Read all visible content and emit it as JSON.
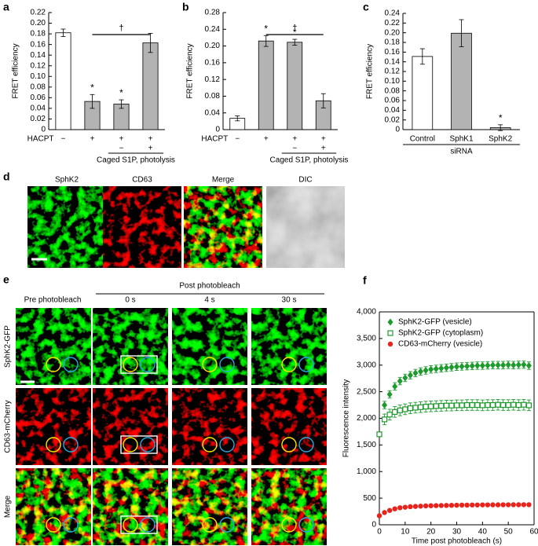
{
  "chart_data": [
    {
      "type": "bar",
      "panel": "a",
      "y_label": "FRET efficiency",
      "row_label": "HACPT",
      "categories": [
        "−",
        "+",
        "+",
        "+"
      ],
      "row2": [
        null,
        null,
        "−",
        "+"
      ],
      "group_label": "Caged S1P, photolysis",
      "values": [
        0.182,
        0.053,
        0.048,
        0.163
      ],
      "errors": [
        0.007,
        0.013,
        0.008,
        0.018
      ],
      "colors": [
        "#ffffff",
        "#b3b3b3",
        "#b3b3b3",
        "#b3b3b3"
      ],
      "annotations": [
        null,
        "*",
        "*",
        null
      ],
      "bracket_label": "†",
      "ylim": [
        0,
        0.22
      ],
      "yticks": [
        0,
        0.02,
        0.04,
        0.06,
        0.08,
        {
          "value": 0.1,
          "label": "0.10"
        },
        0.12,
        0.14,
        0.16,
        0.18,
        {
          "value": 0.2,
          "label": "0.20"
        },
        0.22
      ]
    },
    {
      "type": "bar",
      "panel": "b",
      "y_label": "FRET efficiency",
      "row_label": "HACPT",
      "categories": [
        "−",
        "+",
        "+",
        "+"
      ],
      "row2": [
        null,
        null,
        "−",
        "+"
      ],
      "group_label": "Caged S1P, photolysis",
      "values": [
        0.027,
        0.212,
        0.209,
        0.069
      ],
      "errors": [
        0.006,
        0.013,
        0.007,
        0.017
      ],
      "colors": [
        "#ffffff",
        "#b3b3b3",
        "#b3b3b3",
        "#b3b3b3"
      ],
      "annotations": [
        null,
        "*",
        "*",
        null
      ],
      "bracket_label": "†",
      "ylim": [
        0,
        0.28
      ],
      "yticks": [
        0,
        0.04,
        0.08,
        0.12,
        0.16,
        {
          "value": 0.2,
          "label": "0.20"
        },
        0.24,
        0.28
      ]
    },
    {
      "type": "bar",
      "panel": "c",
      "y_label": "FRET efficiency",
      "categories": [
        "Control",
        "SphK1",
        "SphK2"
      ],
      "group_label": "siRNA",
      "values": [
        0.151,
        0.199,
        0.004
      ],
      "errors": [
        0.016,
        0.028,
        0.006
      ],
      "colors": [
        "#ffffff",
        "#b3b3b3",
        "#b3b3b3"
      ],
      "annotations": [
        null,
        null,
        "*"
      ],
      "ylim": [
        0,
        0.24
      ],
      "yticks": [
        0,
        0.02,
        0.04,
        0.06,
        0.08,
        {
          "value": 0.1,
          "label": "0.10"
        },
        0.12,
        0.14,
        0.16,
        0.18,
        {
          "value": 0.2,
          "label": "0.20"
        },
        0.22,
        0.24
      ]
    },
    {
      "type": "scatter",
      "panel": "f",
      "x_label": "Time post photobleach (s)",
      "y_label": "Fluorescence intensity",
      "legend": "upper left",
      "x": [
        0,
        2,
        4,
        6,
        8,
        10,
        12,
        14,
        16,
        18,
        20,
        22,
        24,
        26,
        28,
        30,
        32,
        34,
        36,
        38,
        40,
        42,
        44,
        46,
        48,
        50,
        52,
        54,
        56,
        58
      ],
      "series": [
        {
          "name": "SphK2-GFP (vesicle)",
          "color": "#1e9a2e",
          "marker": "diamond",
          "values": [
            null,
            2250,
            2450,
            2600,
            2700,
            2760,
            2810,
            2850,
            2880,
            2900,
            2920,
            2930,
            2940,
            2950,
            2960,
            2970,
            2975,
            2980,
            2985,
            2990,
            2990,
            2995,
            3000,
            3000,
            3000,
            3005,
            3000,
            3005,
            3010,
            2990
          ],
          "errors": [
            null,
            70,
            70,
            70,
            70,
            70,
            70,
            70,
            70,
            70,
            70,
            70,
            70,
            70,
            70,
            70,
            70,
            70,
            70,
            70,
            70,
            70,
            70,
            70,
            70,
            70,
            70,
            70,
            70,
            70
          ]
        },
        {
          "name": "SphK2-GFP (cytoplasm)",
          "color": "#1e9a2e",
          "marker": "square-open",
          "values": [
            1700,
            1980,
            2070,
            2120,
            2150,
            2170,
            2190,
            2200,
            2210,
            2220,
            2225,
            2230,
            2235,
            2240,
            2240,
            2245,
            2245,
            2250,
            2250,
            2250,
            2245,
            2250,
            2250,
            2255,
            2250,
            2250,
            2255,
            2250,
            2255,
            2245
          ],
          "errors": [
            40,
            100,
            100,
            100,
            100,
            100,
            100,
            100,
            100,
            100,
            100,
            100,
            100,
            100,
            100,
            100,
            100,
            100,
            100,
            100,
            100,
            100,
            100,
            100,
            100,
            100,
            100,
            100,
            100,
            100
          ]
        },
        {
          "name": "CD63-mCherry (vesicle)",
          "color": "#e8231c",
          "marker": "circle",
          "values": [
            170,
            230,
            270,
            300,
            320,
            330,
            340,
            345,
            350,
            355,
            358,
            360,
            362,
            364,
            366,
            368,
            370,
            370,
            372,
            372,
            374,
            374,
            375,
            375,
            376,
            376,
            377,
            377,
            378,
            378
          ]
        }
      ],
      "xlim": [
        0,
        60
      ],
      "xticks": [
        0,
        10,
        20,
        30,
        40,
        50,
        60
      ],
      "ylim": [
        0,
        4000
      ],
      "yticks": [
        0,
        500,
        {
          "value": 1000,
          "label": "1,000"
        },
        {
          "value": 1500,
          "label": "1,500"
        },
        {
          "value": 2000,
          "label": "2,000"
        },
        {
          "value": 2500,
          "label": "2,500"
        },
        {
          "value": 3000,
          "label": "3,000"
        },
        {
          "value": 3500,
          "label": "3,500"
        },
        {
          "value": 4000,
          "label": "4,000"
        }
      ]
    }
  ],
  "panel_d": {
    "letter": "d",
    "labels": [
      "SphK2",
      "CD63",
      "Merge",
      "DIC"
    ]
  },
  "panel_e": {
    "letter": "e",
    "pre_label": "Pre photobleach",
    "post_label": "Post photobleach",
    "times": [
      "0 s",
      "4 s",
      "30 s"
    ],
    "rows": [
      "SphK2-GFP",
      "CD63-mCherry",
      "Merge"
    ]
  }
}
